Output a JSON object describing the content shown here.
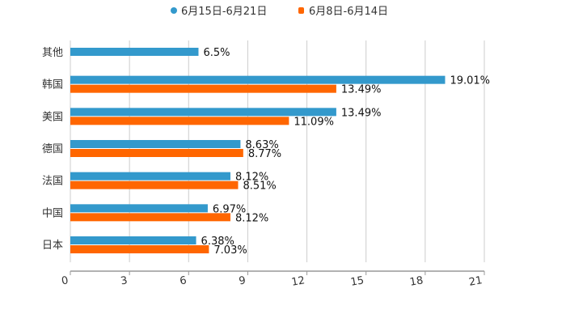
{
  "chart_data": {
    "type": "bar",
    "orientation": "horizontal",
    "title": "",
    "xlabel": "",
    "ylabel": "",
    "xlim": [
      0,
      21
    ],
    "x_ticks": [
      "0",
      "3",
      "6",
      "9",
      "12",
      "15",
      "18",
      "21"
    ],
    "grid": true,
    "legend_position": "top-center",
    "categories": [
      "其他",
      "韩国",
      "美国",
      "德国",
      "法国",
      "中国",
      "日本"
    ],
    "series": [
      {
        "name": "6月15日-6月21日",
        "color": "#3399cc",
        "values": [
          6.5,
          19.01,
          13.49,
          8.63,
          8.12,
          6.97,
          6.38
        ],
        "labels": [
          "6.5%",
          "19.01%",
          "13.49%",
          "8.63%",
          "8.12%",
          "6.97%",
          "6.38%"
        ]
      },
      {
        "name": "6月8日-6月14日",
        "color": "#ff6600",
        "values": [
          null,
          13.49,
          11.09,
          8.77,
          8.51,
          8.12,
          7.03
        ],
        "labels": [
          "",
          "13.49%",
          "11.09%",
          "8.77%",
          "8.51%",
          "8.12%",
          "7.03%"
        ]
      }
    ]
  }
}
